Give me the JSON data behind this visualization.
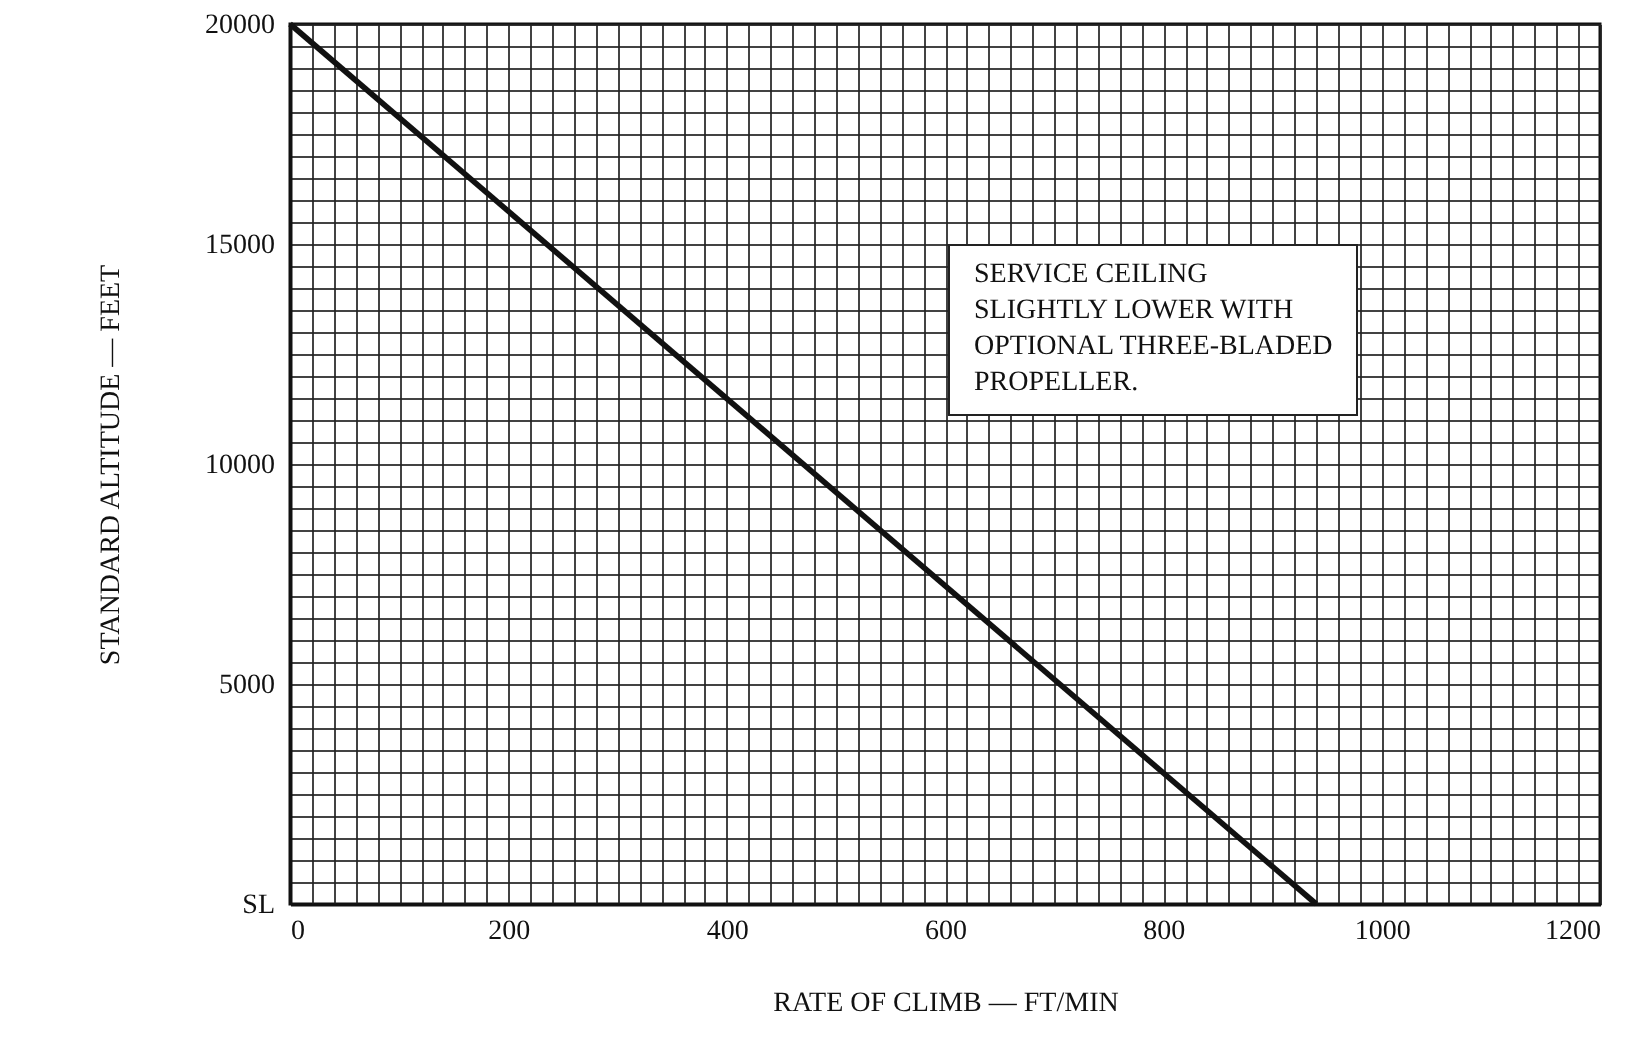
{
  "chart_data": {
    "type": "line",
    "xlabel": "RATE OF CLIMB — FT/MIN",
    "ylabel": "STANDARD ALTITUDE — FEET",
    "annotations": [
      "SERVICE CEILING\nSLIGHTLY LOWER WITH\nOPTIONAL THREE-BLADED\nPROPELLER."
    ],
    "x": [
      0,
      940
    ],
    "series": [
      {
        "color": "#111111",
        "values": [
          20000,
          0
        ]
      }
    ],
    "xlim": [
      0,
      1200
    ],
    "ylim": [
      0,
      20000
    ],
    "xticks": [
      0,
      {
        "value": 20,
        "label": null
      },
      {
        "value": 40,
        "label": null
      },
      {
        "value": 60,
        "label": null
      },
      {
        "value": 80,
        "label": null
      },
      {
        "value": 100,
        "label": null
      },
      {
        "value": 120,
        "label": null
      },
      {
        "value": 140,
        "label": null
      },
      {
        "value": 160,
        "label": null
      },
      {
        "value": 180,
        "label": null
      },
      200,
      {
        "value": 220,
        "label": null
      },
      {
        "value": 240,
        "label": null
      },
      {
        "value": 260,
        "label": null
      },
      {
        "value": 280,
        "label": null
      },
      {
        "value": 300,
        "label": null
      },
      {
        "value": 320,
        "label": null
      },
      {
        "value": 340,
        "label": null
      },
      {
        "value": 360,
        "label": null
      },
      {
        "value": 380,
        "label": null
      },
      400,
      {
        "value": 420,
        "label": null
      },
      {
        "value": 440,
        "label": null
      },
      {
        "value": 460,
        "label": null
      },
      {
        "value": 480,
        "label": null
      },
      {
        "value": 500,
        "label": null
      },
      {
        "value": 520,
        "label": null
      },
      {
        "value": 540,
        "label": null
      },
      {
        "value": 560,
        "label": null
      },
      {
        "value": 580,
        "label": null
      },
      600,
      {
        "value": 620,
        "label": null
      },
      {
        "value": 640,
        "label": null
      },
      {
        "value": 660,
        "label": null
      },
      {
        "value": 680,
        "label": null
      },
      {
        "value": 700,
        "label": null
      },
      {
        "value": 720,
        "label": null
      },
      {
        "value": 740,
        "label": null
      },
      {
        "value": 760,
        "label": null
      },
      {
        "value": 780,
        "label": null
      },
      800,
      {
        "value": 820,
        "label": null
      },
      {
        "value": 840,
        "label": null
      },
      {
        "value": 860,
        "label": null
      },
      {
        "value": 880,
        "label": null
      },
      {
        "value": 900,
        "label": null
      },
      {
        "value": 920,
        "label": null
      },
      {
        "value": 940,
        "label": null
      },
      {
        "value": 960,
        "label": null
      },
      {
        "value": 980,
        "label": null
      },
      1000,
      {
        "value": 1020,
        "label": null
      },
      {
        "value": 1040,
        "label": null
      },
      {
        "value": 1060,
        "label": null
      },
      {
        "value": 1080,
        "label": null
      },
      {
        "value": 1100,
        "label": null
      },
      {
        "value": 1120,
        "label": null
      },
      {
        "value": 1140,
        "label": null
      },
      {
        "value": 1160,
        "label": null
      },
      {
        "value": 1180,
        "label": null
      },
      1200
    ],
    "yticks": [
      {
        "value": 0,
        "label": "SL"
      },
      {
        "value": 500,
        "label": null
      },
      {
        "value": 1000,
        "label": null
      },
      {
        "value": 1500,
        "label": null
      },
      {
        "value": 2000,
        "label": null
      },
      {
        "value": 2500,
        "label": null
      },
      {
        "value": 3000,
        "label": null
      },
      {
        "value": 3500,
        "label": null
      },
      {
        "value": 4000,
        "label": null
      },
      {
        "value": 4500,
        "label": null
      },
      5000,
      {
        "value": 5500,
        "label": null
      },
      {
        "value": 6000,
        "label": null
      },
      {
        "value": 6500,
        "label": null
      },
      {
        "value": 7000,
        "label": null
      },
      {
        "value": 7500,
        "label": null
      },
      {
        "value": 8000,
        "label": null
      },
      {
        "value": 8500,
        "label": null
      },
      {
        "value": 9000,
        "label": null
      },
      {
        "value": 9500,
        "label": null
      },
      10000,
      {
        "value": 10500,
        "label": null
      },
      {
        "value": 11000,
        "label": null
      },
      {
        "value": 11500,
        "label": null
      },
      {
        "value": 12000,
        "label": null
      },
      {
        "value": 12500,
        "label": null
      },
      {
        "value": 13000,
        "label": null
      },
      {
        "value": 13500,
        "label": null
      },
      {
        "value": 14000,
        "label": null
      },
      {
        "value": 14500,
        "label": null
      },
      15000,
      {
        "value": 15500,
        "label": null
      },
      {
        "value": 16000,
        "label": null
      },
      {
        "value": 16500,
        "label": null
      },
      {
        "value": 17000,
        "label": null
      },
      {
        "value": 17500,
        "label": null
      },
      {
        "value": 18000,
        "label": null
      },
      {
        "value": 18500,
        "label": null
      },
      {
        "value": 19000,
        "label": null
      },
      {
        "value": 19500,
        "label": null
      },
      20000
    ],
    "grid": true,
    "marker": "none",
    "line_style": "solid"
  }
}
